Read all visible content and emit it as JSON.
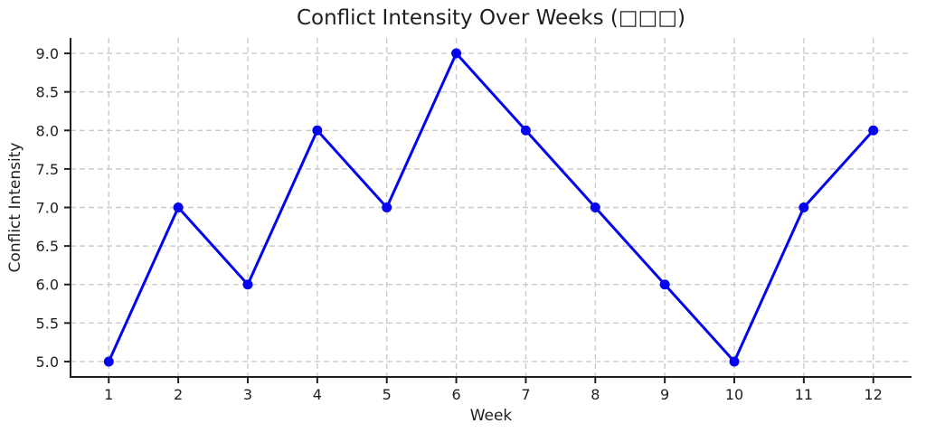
{
  "chart_data": {
    "type": "line",
    "title": "Conflict Intensity Over Weeks (□□□)",
    "xlabel": "Week",
    "ylabel": "Conflict Intensity",
    "x": [
      1,
      2,
      3,
      4,
      5,
      6,
      7,
      8,
      9,
      10,
      11,
      12
    ],
    "values": [
      5,
      7,
      6,
      8,
      7,
      9,
      8,
      7,
      6,
      5,
      7,
      8
    ],
    "xtick_labels": [
      "1",
      "2",
      "3",
      "4",
      "5",
      "6",
      "7",
      "8",
      "9",
      "10",
      "11",
      "12"
    ],
    "ytick_labels": [
      "5.0",
      "5.5",
      "6.0",
      "6.5",
      "7.0",
      "7.5",
      "8.0",
      "8.5",
      "9.0"
    ],
    "ytick_values": [
      5.0,
      5.5,
      6.0,
      6.5,
      7.0,
      7.5,
      8.0,
      8.5,
      9.0
    ],
    "xlim": [
      0.45,
      12.55
    ],
    "ylim": [
      4.8,
      9.2
    ],
    "grid": true,
    "legend": "none",
    "line_color": "#0404ee",
    "marker": "circle",
    "marker_color": "#0404ee",
    "grid_color": "#cbcbcb",
    "axis_color": "#1f1f1f",
    "background_color": "#ffffff"
  }
}
